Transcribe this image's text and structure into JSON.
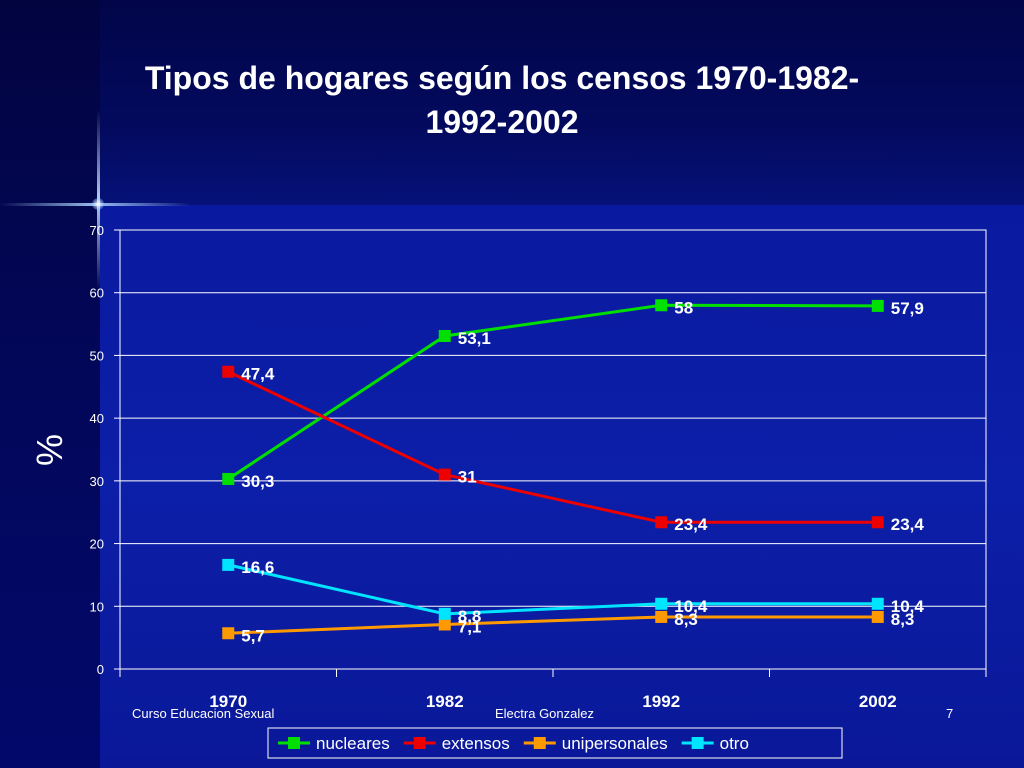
{
  "slide": {
    "title_line1": "Tipos de hogares según los censos 1970-1982-",
    "title_line2": "1992-2002",
    "footer_left": "Curso Educacion Sexual",
    "footer_center": "Electra Gonzalez",
    "footer_right": "7"
  },
  "chart_data": {
    "type": "line",
    "title": "Tipos de hogares según los censos 1970-1982-1992-2002",
    "xlabel": "",
    "ylabel": "%",
    "categories": [
      "1970",
      "1982",
      "1992",
      "2002"
    ],
    "ylim": [
      0,
      70
    ],
    "yticks": [
      0,
      10,
      20,
      30,
      40,
      50,
      60,
      70
    ],
    "grid": true,
    "legend_position": "bottom",
    "series": [
      {
        "name": "nucleares",
        "color": "#00e000",
        "values": [
          30.3,
          53.1,
          58,
          57.9
        ],
        "labels": [
          "30,3",
          "53,1",
          "58",
          "57,9"
        ]
      },
      {
        "name": "extensos",
        "color": "#ee0000",
        "values": [
          47.4,
          31,
          23.4,
          23.4
        ],
        "labels": [
          "47,4",
          "31",
          "23,4",
          "23,4"
        ]
      },
      {
        "name": "unipersonales",
        "color": "#ff9900",
        "values": [
          5.7,
          7.1,
          8.3,
          8.3
        ],
        "labels": [
          "5,7",
          "7,1",
          "8,3",
          "8,3"
        ]
      },
      {
        "name": "otro",
        "color": "#00e5ff",
        "values": [
          16.6,
          8.8,
          10.4,
          10.4
        ],
        "labels": [
          "16,6",
          "8,8",
          "10,4",
          "10,4"
        ]
      }
    ]
  }
}
